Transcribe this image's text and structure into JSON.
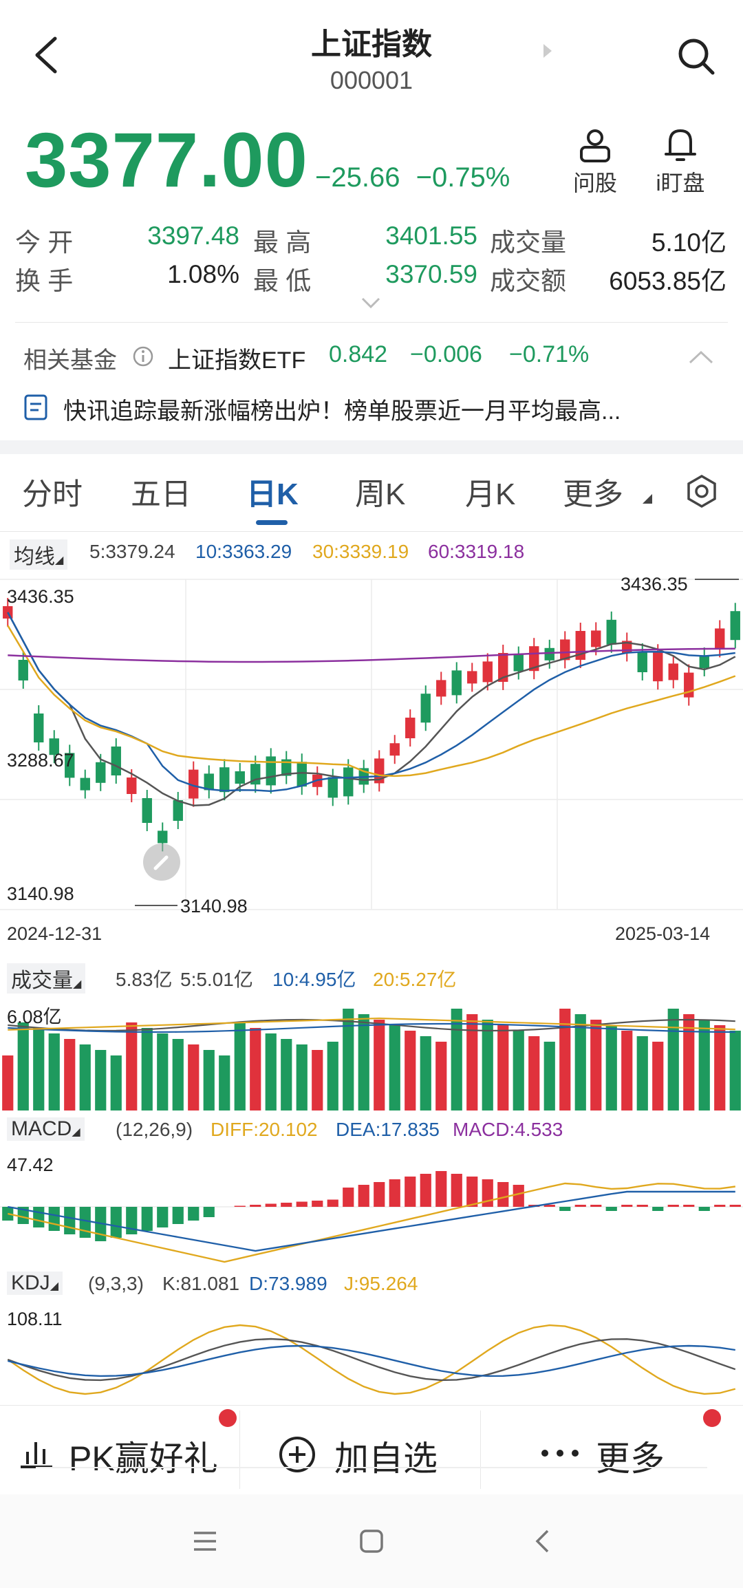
{
  "header": {
    "title": "上证指数",
    "code": "000001"
  },
  "quote": {
    "price": "3377.00",
    "change": "−25.66",
    "change_pct": "−0.75%"
  },
  "actions": [
    {
      "label": "问股",
      "icon": "ask-stock-icon"
    },
    {
      "label": "i盯盘",
      "icon": "bell-icon"
    }
  ],
  "stats": {
    "row1": [
      {
        "label": "今 开",
        "value": "3397.48"
      },
      {
        "label": "最 高",
        "value": "3401.55"
      },
      {
        "label": "成交量",
        "value": "5.10亿"
      }
    ],
    "row2": [
      {
        "label": "换 手",
        "value": "1.08%"
      },
      {
        "label": "最 低",
        "value": "3370.59"
      },
      {
        "label": "成交额",
        "value": "6053.85亿"
      }
    ]
  },
  "fund": {
    "label": "相关基金",
    "name": "上证指数ETF",
    "price": "0.842",
    "change": "−0.006",
    "change_pct": "−0.71%"
  },
  "news": {
    "text": "快讯追踪最新涨幅榜出炉！榜单股票近一月平均最高..."
  },
  "tabs": [
    "分时",
    "五日",
    "日K",
    "周K",
    "月K",
    "更多"
  ],
  "active_tab": "日K",
  "ma_legend": {
    "label": "均线",
    "ma5": "5:3379.24",
    "ma10": "10:3363.29",
    "ma30": "30:3339.19",
    "ma60": "60:3319.18"
  },
  "kline": {
    "y_top": "3436.35",
    "y_mid": "3288.67",
    "y_bottom": "3140.98",
    "high_marker": "3436.35",
    "low_marker": "3140.98",
    "date_start": "2024-12-31",
    "date_end": "2025-03-14"
  },
  "volume_legend": {
    "label": "成交量",
    "v": "5.83亿",
    "ma5": "5:5.01亿",
    "ma10": "10:4.95亿",
    "ma20": "20:5.27亿",
    "y_top": "6.08亿"
  },
  "macd_legend": {
    "label": "MACD",
    "params": "(12,26,9)",
    "diff": "DIFF:20.102",
    "dea": "DEA:17.835",
    "macd": "MACD:4.533",
    "y_top": "47.42"
  },
  "kdj_legend": {
    "label": "KDJ",
    "params": "(9,3,3)",
    "k": "K:81.081",
    "d": "D:73.989",
    "j": "J:95.264",
    "y_top": "108.11"
  },
  "bottom_actions": [
    {
      "label": "PK赢好礼",
      "icon": "chart-bars-icon"
    },
    {
      "label": "加自选",
      "icon": "plus-circle-icon"
    },
    {
      "label": "更多",
      "icon": "more-dots-icon"
    }
  ],
  "colors": {
    "up": "#e0323c",
    "down": "#1e9a5e",
    "ma5": "#555555",
    "ma10": "#1f5fa8",
    "ma30": "#e0a81e",
    "ma60": "#8b2f9e",
    "accent": "#1f5fa8"
  }
}
